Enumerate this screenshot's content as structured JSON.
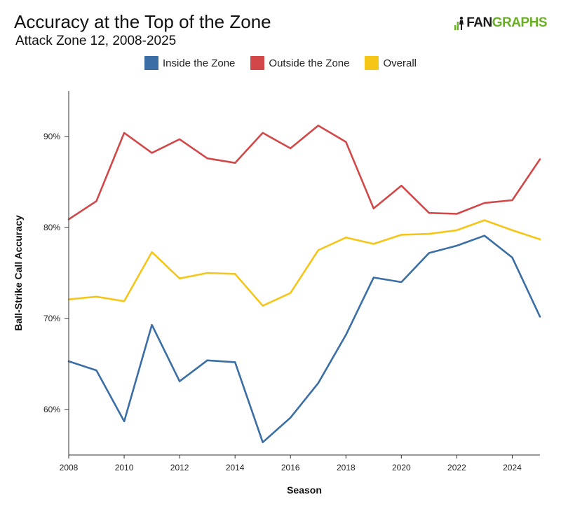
{
  "header": {
    "title": "Accuracy at the Top of the Zone",
    "subtitle": "Attack Zone 12, 2008-2025",
    "logo_fan": "FAN",
    "logo_graphs": "GRAPHS"
  },
  "chart_data": {
    "type": "line",
    "title": "Accuracy at the Top of the Zone",
    "subtitle": "Attack Zone 12, 2008-2025",
    "xlabel": "Season",
    "ylabel": "Ball-Strike Call Accuracy",
    "x": [
      2008,
      2009,
      2010,
      2011,
      2012,
      2013,
      2014,
      2015,
      2016,
      2017,
      2018,
      2019,
      2020,
      2021,
      2022,
      2023,
      2024,
      2025
    ],
    "xlim": [
      2008,
      2025
    ],
    "ylim": [
      55,
      95
    ],
    "xticks": [
      "2008",
      "2010",
      "2012",
      "2014",
      "2016",
      "2018",
      "2020",
      "2022",
      "2024"
    ],
    "yticks": [
      "60%",
      "70%",
      "80%",
      "90%"
    ],
    "ytick_values": [
      60,
      70,
      80,
      90
    ],
    "xtick_values": [
      2008,
      2010,
      2012,
      2014,
      2016,
      2018,
      2020,
      2022,
      2024
    ],
    "grid": false,
    "legend_position": "top-center",
    "series": [
      {
        "name": "Inside the Zone",
        "color": "#3a6ea5",
        "values": [
          65.3,
          64.3,
          58.7,
          69.3,
          63.1,
          65.4,
          65.2,
          56.4,
          59.1,
          62.9,
          68.2,
          74.5,
          74.0,
          77.2,
          78.0,
          79.1,
          76.7,
          70.2
        ]
      },
      {
        "name": "Outside the Zone",
        "color": "#d24848",
        "values": [
          80.9,
          82.9,
          90.4,
          88.2,
          89.7,
          87.6,
          87.1,
          90.4,
          88.7,
          91.2,
          89.4,
          82.1,
          84.6,
          81.6,
          81.5,
          82.7,
          83.0,
          87.5
        ]
      },
      {
        "name": "Overall",
        "color": "#f5c518",
        "values": [
          72.1,
          72.4,
          71.9,
          77.3,
          74.4,
          75.0,
          74.9,
          71.4,
          72.8,
          77.5,
          78.9,
          78.2,
          79.2,
          79.3,
          79.7,
          80.8,
          79.7,
          78.7
        ]
      }
    ]
  }
}
